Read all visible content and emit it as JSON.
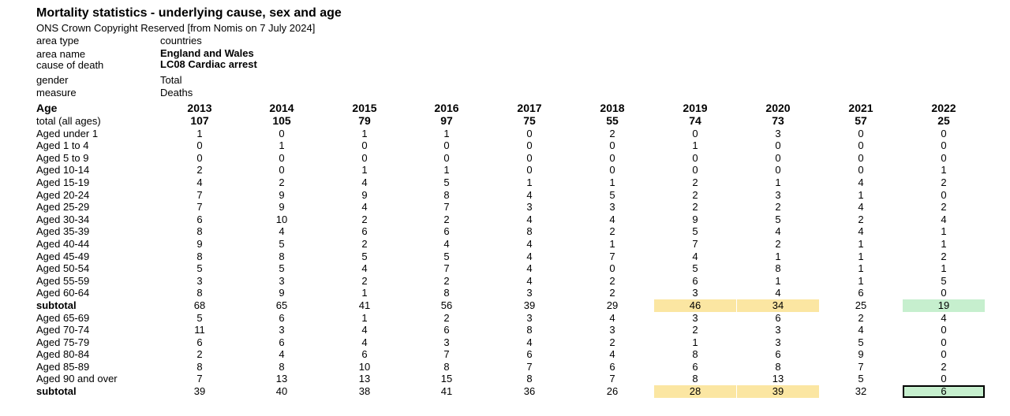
{
  "title": "Mortality statistics - underlying cause, sex and age",
  "subtitle": "ONS Crown Copyright Reserved [from Nomis on 7 July 2024]",
  "meta": [
    {
      "label": "area type",
      "value": "countries",
      "strong": false
    },
    {
      "label": "area name",
      "value": "England and Wales",
      "strong": true
    },
    {
      "label": "cause of death",
      "value": "LC08 Cardiac arrest",
      "strong": true
    },
    {
      "label": "gender",
      "value": "Total",
      "strong": false
    },
    {
      "label": "measure",
      "value": "Deaths",
      "strong": false
    }
  ],
  "table": {
    "header_label": "Age",
    "years": [
      "2013",
      "2014",
      "2015",
      "2016",
      "2017",
      "2018",
      "2019",
      "2020",
      "2021",
      "2022"
    ],
    "rows": [
      {
        "label": "total (all ages)",
        "values": [
          "107",
          "105",
          "79",
          "97",
          "75",
          "55",
          "74",
          "73",
          "57",
          "25"
        ],
        "kind": "total"
      },
      {
        "label": "Aged under 1",
        "values": [
          "1",
          "0",
          "1",
          "1",
          "0",
          "2",
          "0",
          "3",
          "0",
          "0"
        ],
        "kind": "normal"
      },
      {
        "label": "Aged 1 to 4",
        "values": [
          "0",
          "1",
          "0",
          "0",
          "0",
          "0",
          "1",
          "0",
          "0",
          "0"
        ],
        "kind": "normal"
      },
      {
        "label": "Aged 5 to 9",
        "values": [
          "0",
          "0",
          "0",
          "0",
          "0",
          "0",
          "0",
          "0",
          "0",
          "0"
        ],
        "kind": "normal"
      },
      {
        "label": "Aged 10-14",
        "values": [
          "2",
          "0",
          "1",
          "1",
          "0",
          "0",
          "0",
          "0",
          "0",
          "1"
        ],
        "kind": "normal"
      },
      {
        "label": "Aged 15-19",
        "values": [
          "4",
          "2",
          "4",
          "5",
          "1",
          "1",
          "2",
          "1",
          "4",
          "2"
        ],
        "kind": "normal"
      },
      {
        "label": "Aged 20-24",
        "values": [
          "7",
          "9",
          "9",
          "8",
          "4",
          "5",
          "2",
          "3",
          "1",
          "0"
        ],
        "kind": "normal"
      },
      {
        "label": "Aged 25-29",
        "values": [
          "7",
          "9",
          "4",
          "7",
          "3",
          "3",
          "2",
          "2",
          "4",
          "2"
        ],
        "kind": "normal"
      },
      {
        "label": "Aged 30-34",
        "values": [
          "6",
          "10",
          "2",
          "2",
          "4",
          "4",
          "9",
          "5",
          "2",
          "4"
        ],
        "kind": "normal"
      },
      {
        "label": "Aged 35-39",
        "values": [
          "8",
          "4",
          "6",
          "6",
          "8",
          "2",
          "5",
          "4",
          "4",
          "1"
        ],
        "kind": "normal"
      },
      {
        "label": "Aged 40-44",
        "values": [
          "9",
          "5",
          "2",
          "4",
          "4",
          "1",
          "7",
          "2",
          "1",
          "1"
        ],
        "kind": "normal"
      },
      {
        "label": "Aged 45-49",
        "values": [
          "8",
          "8",
          "5",
          "5",
          "4",
          "7",
          "4",
          "1",
          "1",
          "2"
        ],
        "kind": "normal"
      },
      {
        "label": "Aged 50-54",
        "values": [
          "5",
          "5",
          "4",
          "7",
          "4",
          "0",
          "5",
          "8",
          "1",
          "1"
        ],
        "kind": "normal"
      },
      {
        "label": "Aged 55-59",
        "values": [
          "3",
          "3",
          "2",
          "2",
          "4",
          "2",
          "6",
          "1",
          "1",
          "5"
        ],
        "kind": "normal"
      },
      {
        "label": "Aged 60-64",
        "values": [
          "8",
          "9",
          "1",
          "8",
          "3",
          "2",
          "3",
          "4",
          "6",
          "0"
        ],
        "kind": "normal"
      },
      {
        "label": "subtotal",
        "values": [
          "68",
          "65",
          "41",
          "56",
          "39",
          "29",
          "46",
          "34",
          "25",
          "19"
        ],
        "kind": "subtotal",
        "highlight": [
          "",
          "",
          "",
          "",
          "",
          "",
          "yellow",
          "yellow",
          "",
          "green"
        ],
        "selected_col": -1
      },
      {
        "label": "Aged 65-69",
        "values": [
          "5",
          "6",
          "1",
          "2",
          "3",
          "4",
          "3",
          "6",
          "2",
          "4"
        ],
        "kind": "normal"
      },
      {
        "label": "Aged 70-74",
        "values": [
          "11",
          "3",
          "4",
          "6",
          "8",
          "3",
          "2",
          "3",
          "4",
          "0"
        ],
        "kind": "normal"
      },
      {
        "label": "Aged 75-79",
        "values": [
          "6",
          "6",
          "4",
          "3",
          "4",
          "2",
          "1",
          "3",
          "5",
          "0"
        ],
        "kind": "normal"
      },
      {
        "label": "Aged 80-84",
        "values": [
          "2",
          "4",
          "6",
          "7",
          "6",
          "4",
          "8",
          "6",
          "9",
          "0"
        ],
        "kind": "normal"
      },
      {
        "label": "Aged 85-89",
        "values": [
          "8",
          "8",
          "10",
          "8",
          "7",
          "6",
          "6",
          "8",
          "7",
          "2"
        ],
        "kind": "normal"
      },
      {
        "label": "Aged 90 and over",
        "values": [
          "7",
          "13",
          "13",
          "15",
          "8",
          "7",
          "8",
          "13",
          "5",
          "0"
        ],
        "kind": "normal"
      },
      {
        "label": "subtotal",
        "values": [
          "39",
          "40",
          "38",
          "41",
          "36",
          "26",
          "28",
          "39",
          "32",
          "6"
        ],
        "kind": "subtotal",
        "highlight": [
          "",
          "",
          "",
          "",
          "",
          "",
          "yellow",
          "yellow",
          "",
          "green"
        ],
        "selected_col": 9
      }
    ]
  },
  "colors": {
    "highlight_yellow": "#fbe6a2",
    "highlight_green": "#c6efce",
    "selection_border": "#000000"
  }
}
